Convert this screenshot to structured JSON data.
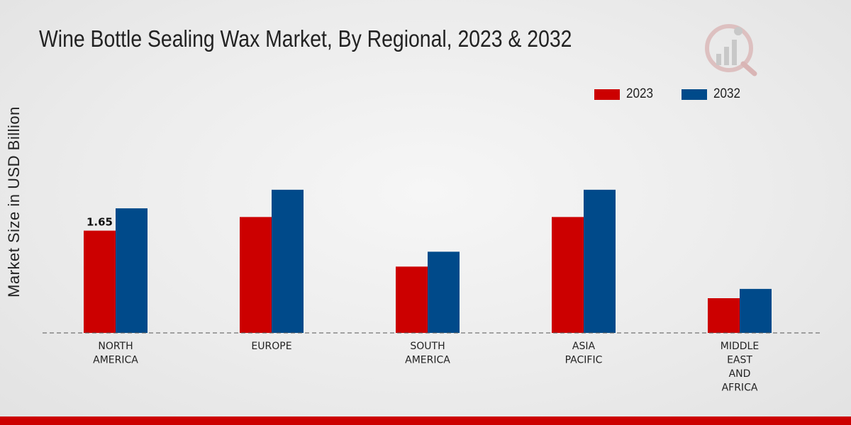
{
  "chart_data": {
    "type": "bar",
    "title": "Wine Bottle Sealing Wax Market, By Regional, 2023 & 2032",
    "xlabel": "",
    "ylabel": "Market Size in USD Billion",
    "ylim": [
      0,
      4
    ],
    "categories": [
      [
        "NORTH",
        "AMERICA"
      ],
      [
        "EUROPE"
      ],
      [
        "SOUTH",
        "AMERICA"
      ],
      [
        "ASIA",
        "PACIFIC"
      ],
      [
        "MIDDLE",
        "EAST",
        "AND",
        "AFRICA"
      ]
    ],
    "series": [
      {
        "name": "2023",
        "color": "#cc0000",
        "values": [
          1.65,
          1.87,
          1.07,
          1.87,
          0.56
        ]
      },
      {
        "name": "2032",
        "color": "#004a8a",
        "values": [
          2.01,
          2.31,
          1.31,
          2.31,
          0.71
        ]
      }
    ],
    "data_labels": [
      {
        "series": 0,
        "index": 0,
        "text": "1.65"
      }
    ],
    "legend_position": "top-right"
  }
}
